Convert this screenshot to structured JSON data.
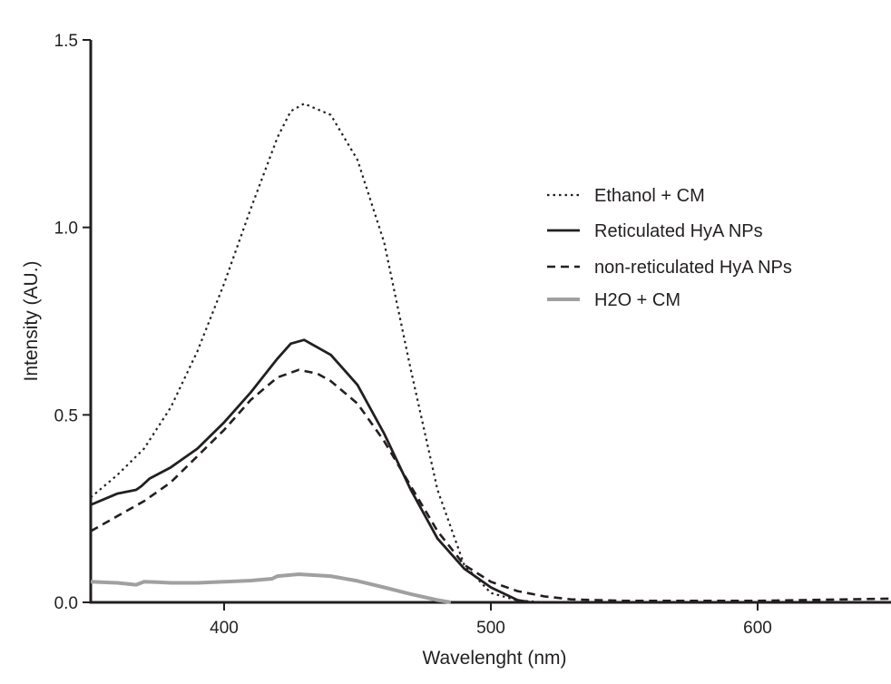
{
  "chart_data": {
    "type": "line",
    "title": "",
    "xlabel": "Wavelenght (nm)",
    "ylabel": "Intensity (AU.)",
    "xlim": [
      350,
      650
    ],
    "ylim": [
      0,
      1.5
    ],
    "xticks": [
      400,
      500,
      600
    ],
    "xtick_labels": [
      "400",
      "500",
      "600"
    ],
    "yticks": [
      0,
      0.5,
      1.0,
      1.5
    ],
    "ytick_labels": [
      "0.0",
      "0.5",
      "1.0",
      "1.5"
    ],
    "grid": false,
    "legend_position": "top-right",
    "series": [
      {
        "name": "Ethanol + CM",
        "style": "dotted",
        "color": "#231f20",
        "x": [
          350,
          360,
          370,
          380,
          390,
          400,
          410,
          420,
          425,
          430,
          440,
          450,
          460,
          470,
          480,
          490,
          500,
          510,
          520,
          650
        ],
        "y": [
          0.28,
          0.34,
          0.41,
          0.52,
          0.67,
          0.85,
          1.05,
          1.24,
          1.31,
          1.33,
          1.3,
          1.18,
          0.96,
          0.62,
          0.3,
          0.1,
          0.025,
          0.005,
          0.0,
          0.0
        ]
      },
      {
        "name": "Reticulated HyA NPs",
        "style": "solid",
        "color": "#231f20",
        "x": [
          350,
          360,
          367,
          369,
          372,
          380,
          390,
          400,
          410,
          420,
          425,
          430,
          440,
          450,
          460,
          470,
          480,
          490,
          500,
          510,
          515,
          650
        ],
        "y": [
          0.26,
          0.29,
          0.3,
          0.31,
          0.33,
          0.36,
          0.41,
          0.48,
          0.56,
          0.65,
          0.69,
          0.7,
          0.66,
          0.58,
          0.45,
          0.3,
          0.17,
          0.09,
          0.04,
          0.006,
          0.0,
          0.0
        ]
      },
      {
        "name": "non-reticulated HyA NPs",
        "style": "dashed",
        "color": "#231f20",
        "x": [
          350,
          360,
          370,
          380,
          390,
          400,
          410,
          420,
          428,
          435,
          440,
          450,
          460,
          470,
          480,
          490,
          500,
          510,
          520,
          530,
          550,
          600,
          650
        ],
        "y": [
          0.19,
          0.23,
          0.27,
          0.32,
          0.39,
          0.46,
          0.54,
          0.6,
          0.62,
          0.61,
          0.59,
          0.53,
          0.43,
          0.31,
          0.19,
          0.1,
          0.055,
          0.03,
          0.016,
          0.008,
          0.004,
          0.004,
          0.01
        ]
      },
      {
        "name": "H2O + CM",
        "style": "solid-thick",
        "color": "#a0a0a0",
        "x": [
          350,
          360,
          367,
          370,
          375,
          380,
          390,
          400,
          410,
          418,
          420,
          428,
          440,
          450,
          460,
          470,
          480,
          485
        ],
        "y": [
          0.055,
          0.052,
          0.047,
          0.055,
          0.054,
          0.052,
          0.052,
          0.055,
          0.058,
          0.063,
          0.07,
          0.075,
          0.07,
          0.057,
          0.04,
          0.022,
          0.006,
          0.0
        ]
      }
    ]
  }
}
